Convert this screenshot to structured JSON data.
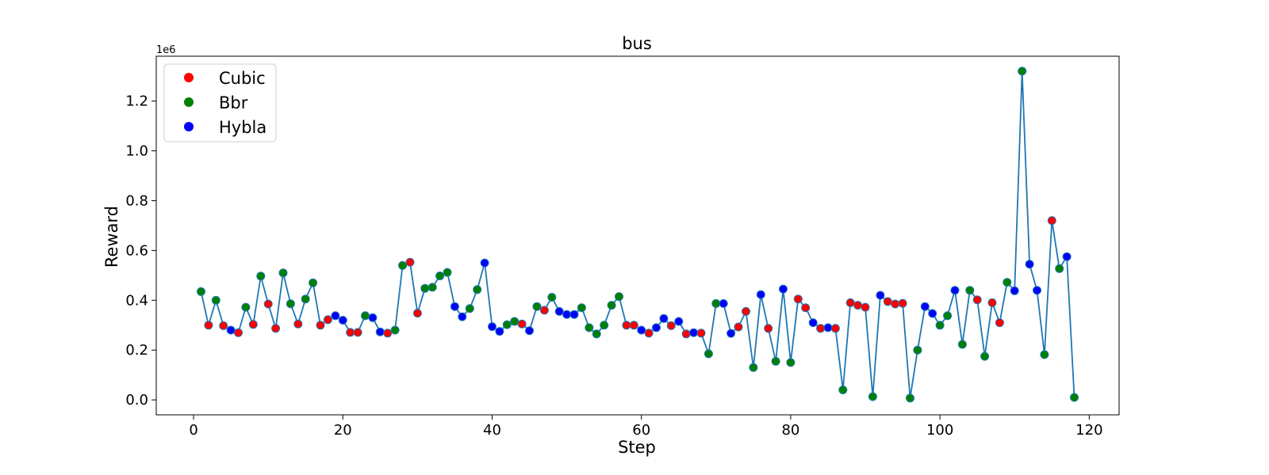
{
  "chart_data": {
    "type": "scatter",
    "title": "bus",
    "xlabel": "Step",
    "ylabel": "Reward",
    "y_offset_label": "1e6",
    "xlim": [
      -5,
      124
    ],
    "ylim": [
      -0.06,
      1.38
    ],
    "xticks": [
      0,
      20,
      40,
      60,
      80,
      100,
      120
    ],
    "yticks": [
      0.0,
      0.2,
      0.4,
      0.6,
      0.8,
      1.0,
      1.2
    ],
    "ytick_labels": [
      "0.0",
      "0.2",
      "0.4",
      "0.6",
      "0.8",
      "1.0",
      "1.2"
    ],
    "line_color": "#1f77b4",
    "legend_position": "upper-left",
    "legend": [
      {
        "name": "Cubic",
        "color": "#ff0000"
      },
      {
        "name": "Bbr",
        "color": "#008000"
      },
      {
        "name": "Hybla",
        "color": "#0000ff"
      }
    ],
    "x": [
      1,
      2,
      3,
      4,
      5,
      6,
      7,
      8,
      9,
      10,
      11,
      12,
      13,
      14,
      15,
      16,
      17,
      18,
      19,
      20,
      21,
      22,
      23,
      24,
      25,
      26,
      27,
      28,
      29,
      30,
      31,
      32,
      33,
      34,
      35,
      36,
      37,
      38,
      39,
      40,
      41,
      42,
      43,
      44,
      45,
      46,
      47,
      48,
      49,
      50,
      51,
      52,
      53,
      54,
      55,
      56,
      57,
      58,
      59,
      60,
      61,
      62,
      63,
      64,
      65,
      66,
      67,
      68,
      69,
      70,
      71,
      72,
      73,
      74,
      75,
      76,
      77,
      78,
      79,
      80,
      81,
      82,
      83,
      84,
      85,
      86,
      87,
      88,
      89,
      90,
      91,
      92,
      93,
      94,
      95,
      96,
      97,
      98,
      99,
      100,
      101,
      102,
      103,
      104,
      105,
      106,
      107,
      108,
      109,
      110,
      111,
      112,
      113,
      114,
      115,
      116,
      117,
      118
    ],
    "y": [
      0.435,
      0.3,
      0.4,
      0.298,
      0.28,
      0.27,
      0.372,
      0.303,
      0.497,
      0.385,
      0.287,
      0.51,
      0.386,
      0.305,
      0.405,
      0.47,
      0.3,
      0.322,
      0.338,
      0.32,
      0.271,
      0.271,
      0.338,
      0.33,
      0.273,
      0.268,
      0.28,
      0.54,
      0.553,
      0.348,
      0.448,
      0.452,
      0.498,
      0.512,
      0.375,
      0.334,
      0.367,
      0.443,
      0.55,
      0.294,
      0.275,
      0.302,
      0.315,
      0.305,
      0.278,
      0.375,
      0.36,
      0.412,
      0.355,
      0.343,
      0.343,
      0.37,
      0.29,
      0.265,
      0.3,
      0.38,
      0.415,
      0.3,
      0.3,
      0.28,
      0.268,
      0.29,
      0.327,
      0.298,
      0.315,
      0.265,
      0.27,
      0.268,
      0.185,
      0.387,
      0.387,
      0.267,
      0.293,
      0.355,
      0.13,
      0.423,
      0.287,
      0.155,
      0.445,
      0.15,
      0.405,
      0.37,
      0.31,
      0.287,
      0.29,
      0.287,
      0.04,
      0.39,
      0.38,
      0.372,
      0.013,
      0.42,
      0.395,
      0.385,
      0.388,
      0.007,
      0.2,
      0.375,
      0.347,
      0.3,
      0.338,
      0.44,
      0.223,
      0.44,
      0.402,
      0.175,
      0.39,
      0.31,
      0.472,
      0.438,
      1.32,
      0.545,
      0.44,
      0.182,
      0.72,
      0.527,
      0.575,
      0.01
    ],
    "algo": [
      "Bbr",
      "Cubic",
      "Bbr",
      "Cubic",
      "Hybla",
      "Cubic",
      "Bbr",
      "Cubic",
      "Bbr",
      "Cubic",
      "Cubic",
      "Bbr",
      "Bbr",
      "Cubic",
      "Bbr",
      "Bbr",
      "Cubic",
      "Cubic",
      "Hybla",
      "Hybla",
      "Cubic",
      "Cubic",
      "Bbr",
      "Hybla",
      "Hybla",
      "Cubic",
      "Bbr",
      "Bbr",
      "Cubic",
      "Cubic",
      "Bbr",
      "Bbr",
      "Bbr",
      "Bbr",
      "Hybla",
      "Hybla",
      "Bbr",
      "Bbr",
      "Hybla",
      "Hybla",
      "Hybla",
      "Bbr",
      "Bbr",
      "Cubic",
      "Hybla",
      "Bbr",
      "Cubic",
      "Bbr",
      "Hybla",
      "Hybla",
      "Hybla",
      "Bbr",
      "Bbr",
      "Bbr",
      "Bbr",
      "Bbr",
      "Bbr",
      "Cubic",
      "Cubic",
      "Hybla",
      "Cubic",
      "Hybla",
      "Hybla",
      "Cubic",
      "Hybla",
      "Cubic",
      "Hybla",
      "Cubic",
      "Bbr",
      "Bbr",
      "Hybla",
      "Hybla",
      "Cubic",
      "Cubic",
      "Bbr",
      "Hybla",
      "Cubic",
      "Bbr",
      "Hybla",
      "Bbr",
      "Cubic",
      "Cubic",
      "Hybla",
      "Cubic",
      "Hybla",
      "Cubic",
      "Bbr",
      "Cubic",
      "Cubic",
      "Cubic",
      "Bbr",
      "Hybla",
      "Cubic",
      "Cubic",
      "Cubic",
      "Bbr",
      "Bbr",
      "Hybla",
      "Hybla",
      "Bbr",
      "Bbr",
      "Hybla",
      "Bbr",
      "Bbr",
      "Cubic",
      "Bbr",
      "Cubic",
      "Cubic",
      "Bbr",
      "Hybla",
      "Bbr",
      "Hybla",
      "Hybla",
      "Bbr",
      "Cubic",
      "Bbr",
      "Hybla",
      "Bbr"
    ]
  }
}
